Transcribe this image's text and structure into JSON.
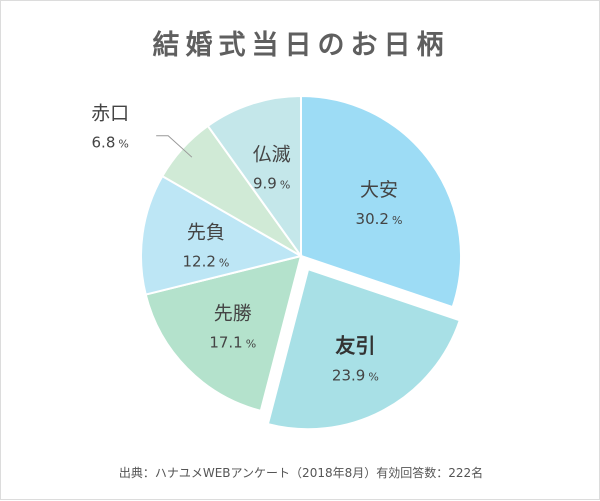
{
  "title": "結婚式当日のお日柄",
  "source": "出典：ハナユメWEBアンケート（2018年8月）有効回答数：222名",
  "chart_data": {
    "type": "pie",
    "unit": "%",
    "slices": [
      {
        "name": "大安",
        "value": 30.2,
        "value_label": "30.2",
        "color": "#9ddcf5",
        "bold": false,
        "exploded": false
      },
      {
        "name": "友引",
        "value": 23.9,
        "value_label": "23.9",
        "color": "#a8e0e6",
        "bold": true,
        "exploded": true
      },
      {
        "name": "先勝",
        "value": 17.1,
        "value_label": "17.1",
        "color": "#b4e2cc",
        "bold": false,
        "exploded": false
      },
      {
        "name": "先負",
        "value": 12.2,
        "value_label": "12.2",
        "color": "#bde6f5",
        "bold": false,
        "exploded": false
      },
      {
        "name": "赤口",
        "value": 6.8,
        "value_label": "6.8",
        "color": "#d0ead6",
        "bold": false,
        "exploded": false,
        "outside_label": true
      },
      {
        "name": "仏滅",
        "value": 9.9,
        "value_label": "9.9",
        "color": "#c4e7ea",
        "bold": false,
        "exploded": false
      }
    ]
  }
}
